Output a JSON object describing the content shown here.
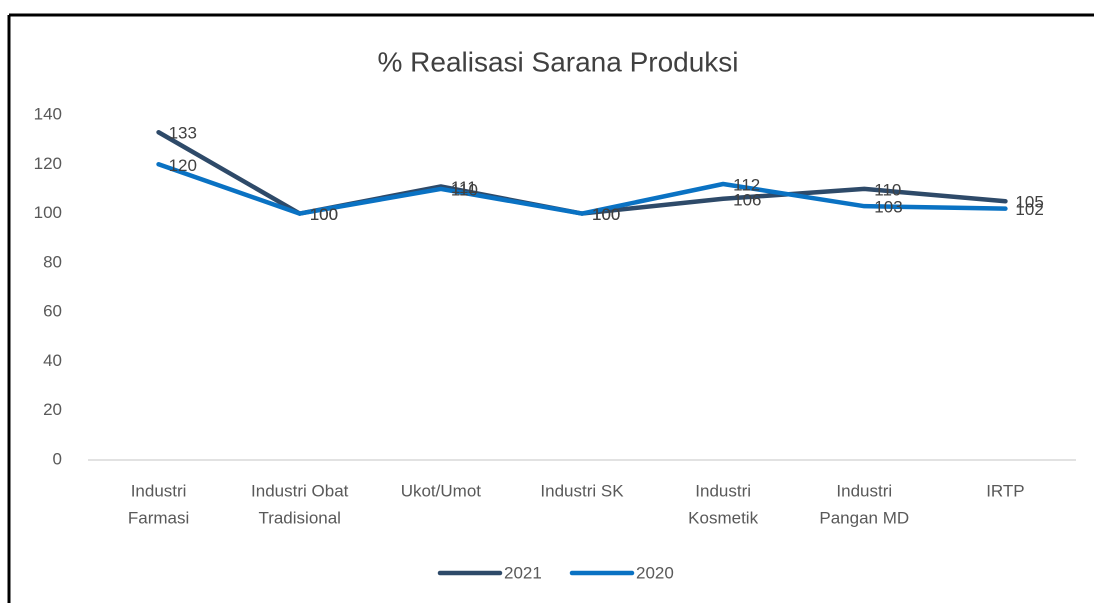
{
  "chart_data": {
    "type": "line",
    "title": "% Realisasi Sarana Produksi",
    "categories": [
      [
        "Industri",
        "Farmasi"
      ],
      [
        "Industri Obat",
        "Tradisional"
      ],
      [
        "Ukot/Umot"
      ],
      [
        "Industri SK"
      ],
      [
        "Industri",
        "Kosmetik"
      ],
      [
        "Industri",
        "Pangan MD"
      ],
      [
        "IRTP"
      ]
    ],
    "series": [
      {
        "name": "2021",
        "color": "#2e4a69",
        "values": [
          133,
          100,
          111,
          100,
          106,
          110,
          105
        ]
      },
      {
        "name": "2020",
        "color": "#0a72c3",
        "values": [
          120,
          100,
          110,
          100,
          112,
          103,
          102
        ]
      }
    ],
    "ylim": [
      0,
      140
    ],
    "yticks": [
      0,
      20,
      40,
      60,
      80,
      100,
      120,
      140
    ],
    "grid": false,
    "legend": "bottom"
  }
}
